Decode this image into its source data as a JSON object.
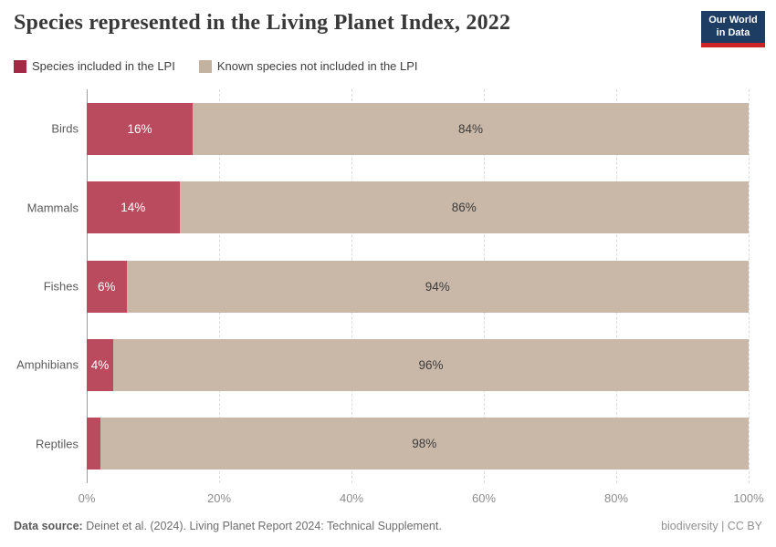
{
  "header": {
    "title": "Species represented in the Living Planet Index, 2022"
  },
  "logo": {
    "line1": "Our World",
    "line2": "in Data",
    "bg_color": "#1d3d63",
    "accent_color": "#cc2327"
  },
  "legend": {
    "items": [
      {
        "label": "Species included in the LPI",
        "color": "#a32845"
      },
      {
        "label": "Known species not included in the LPI",
        "color": "#c4b2a0"
      }
    ]
  },
  "chart_data": {
    "type": "bar",
    "orientation": "horizontal-stacked",
    "title": "Species represented in the Living Planet Index, 2022",
    "categories": [
      "Birds",
      "Mammals",
      "Fishes",
      "Amphibians",
      "Reptiles"
    ],
    "series": [
      {
        "name": "Species included in the LPI",
        "color": "#ba4b5e",
        "values": [
          16,
          14,
          6,
          4,
          2
        ],
        "labels": [
          "16%",
          "14%",
          "6%",
          "4%",
          ""
        ]
      },
      {
        "name": "Known species not included in the LPI",
        "color": "#c9b8a8",
        "values": [
          84,
          86,
          94,
          96,
          98
        ],
        "labels": [
          "84%",
          "86%",
          "94%",
          "96%",
          "98%"
        ]
      }
    ],
    "xlim": [
      0,
      100
    ],
    "x_ticks": [
      {
        "value": 0,
        "label": "0%"
      },
      {
        "value": 20,
        "label": "20%"
      },
      {
        "value": 40,
        "label": "40%"
      },
      {
        "value": 60,
        "label": "60%"
      },
      {
        "value": 80,
        "label": "80%"
      },
      {
        "value": 100,
        "label": "100%"
      }
    ],
    "grid": "vertical-dashed",
    "legend_position": "top"
  },
  "footer": {
    "source_prefix": "Data source:",
    "source_text": " Deinet et al. (2024). Living Planet Report 2024: Technical Supplement.",
    "right_text": "biodiversity | CC BY"
  }
}
